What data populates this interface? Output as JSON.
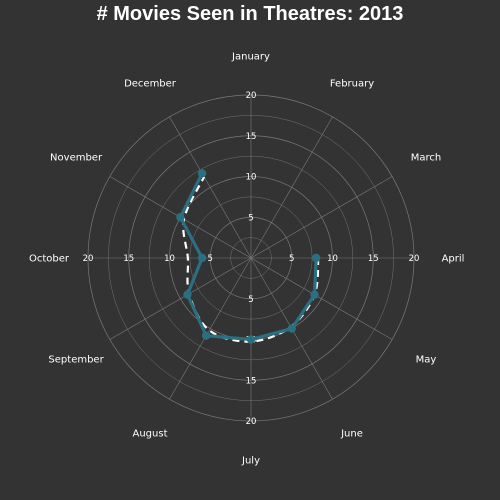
{
  "chart_data": {
    "type": "line",
    "coordinate_system": "polar",
    "title": "# Movies Seen in Theatres: 2013",
    "categories": [
      "January",
      "February",
      "March",
      "April",
      "May",
      "June",
      "July",
      "August",
      "September",
      "October",
      "November",
      "December"
    ],
    "series": [
      {
        "values": [
          null,
          null,
          null,
          8,
          9,
          10,
          10,
          11,
          9,
          6,
          10,
          12
        ],
        "color": "#2b6f82",
        "style": "solid-with-markers"
      }
    ],
    "trend_line": {
      "style": "dashed",
      "color": "#ffffff"
    },
    "radial_ticks": [
      5,
      10,
      15,
      20
    ],
    "rlim": [
      0,
      20
    ],
    "grid": true,
    "legend": "none"
  },
  "colors": {
    "background": "#333333",
    "grid": "#7a7a7a",
    "series": "#2b6f82",
    "text": "#ffffff"
  }
}
